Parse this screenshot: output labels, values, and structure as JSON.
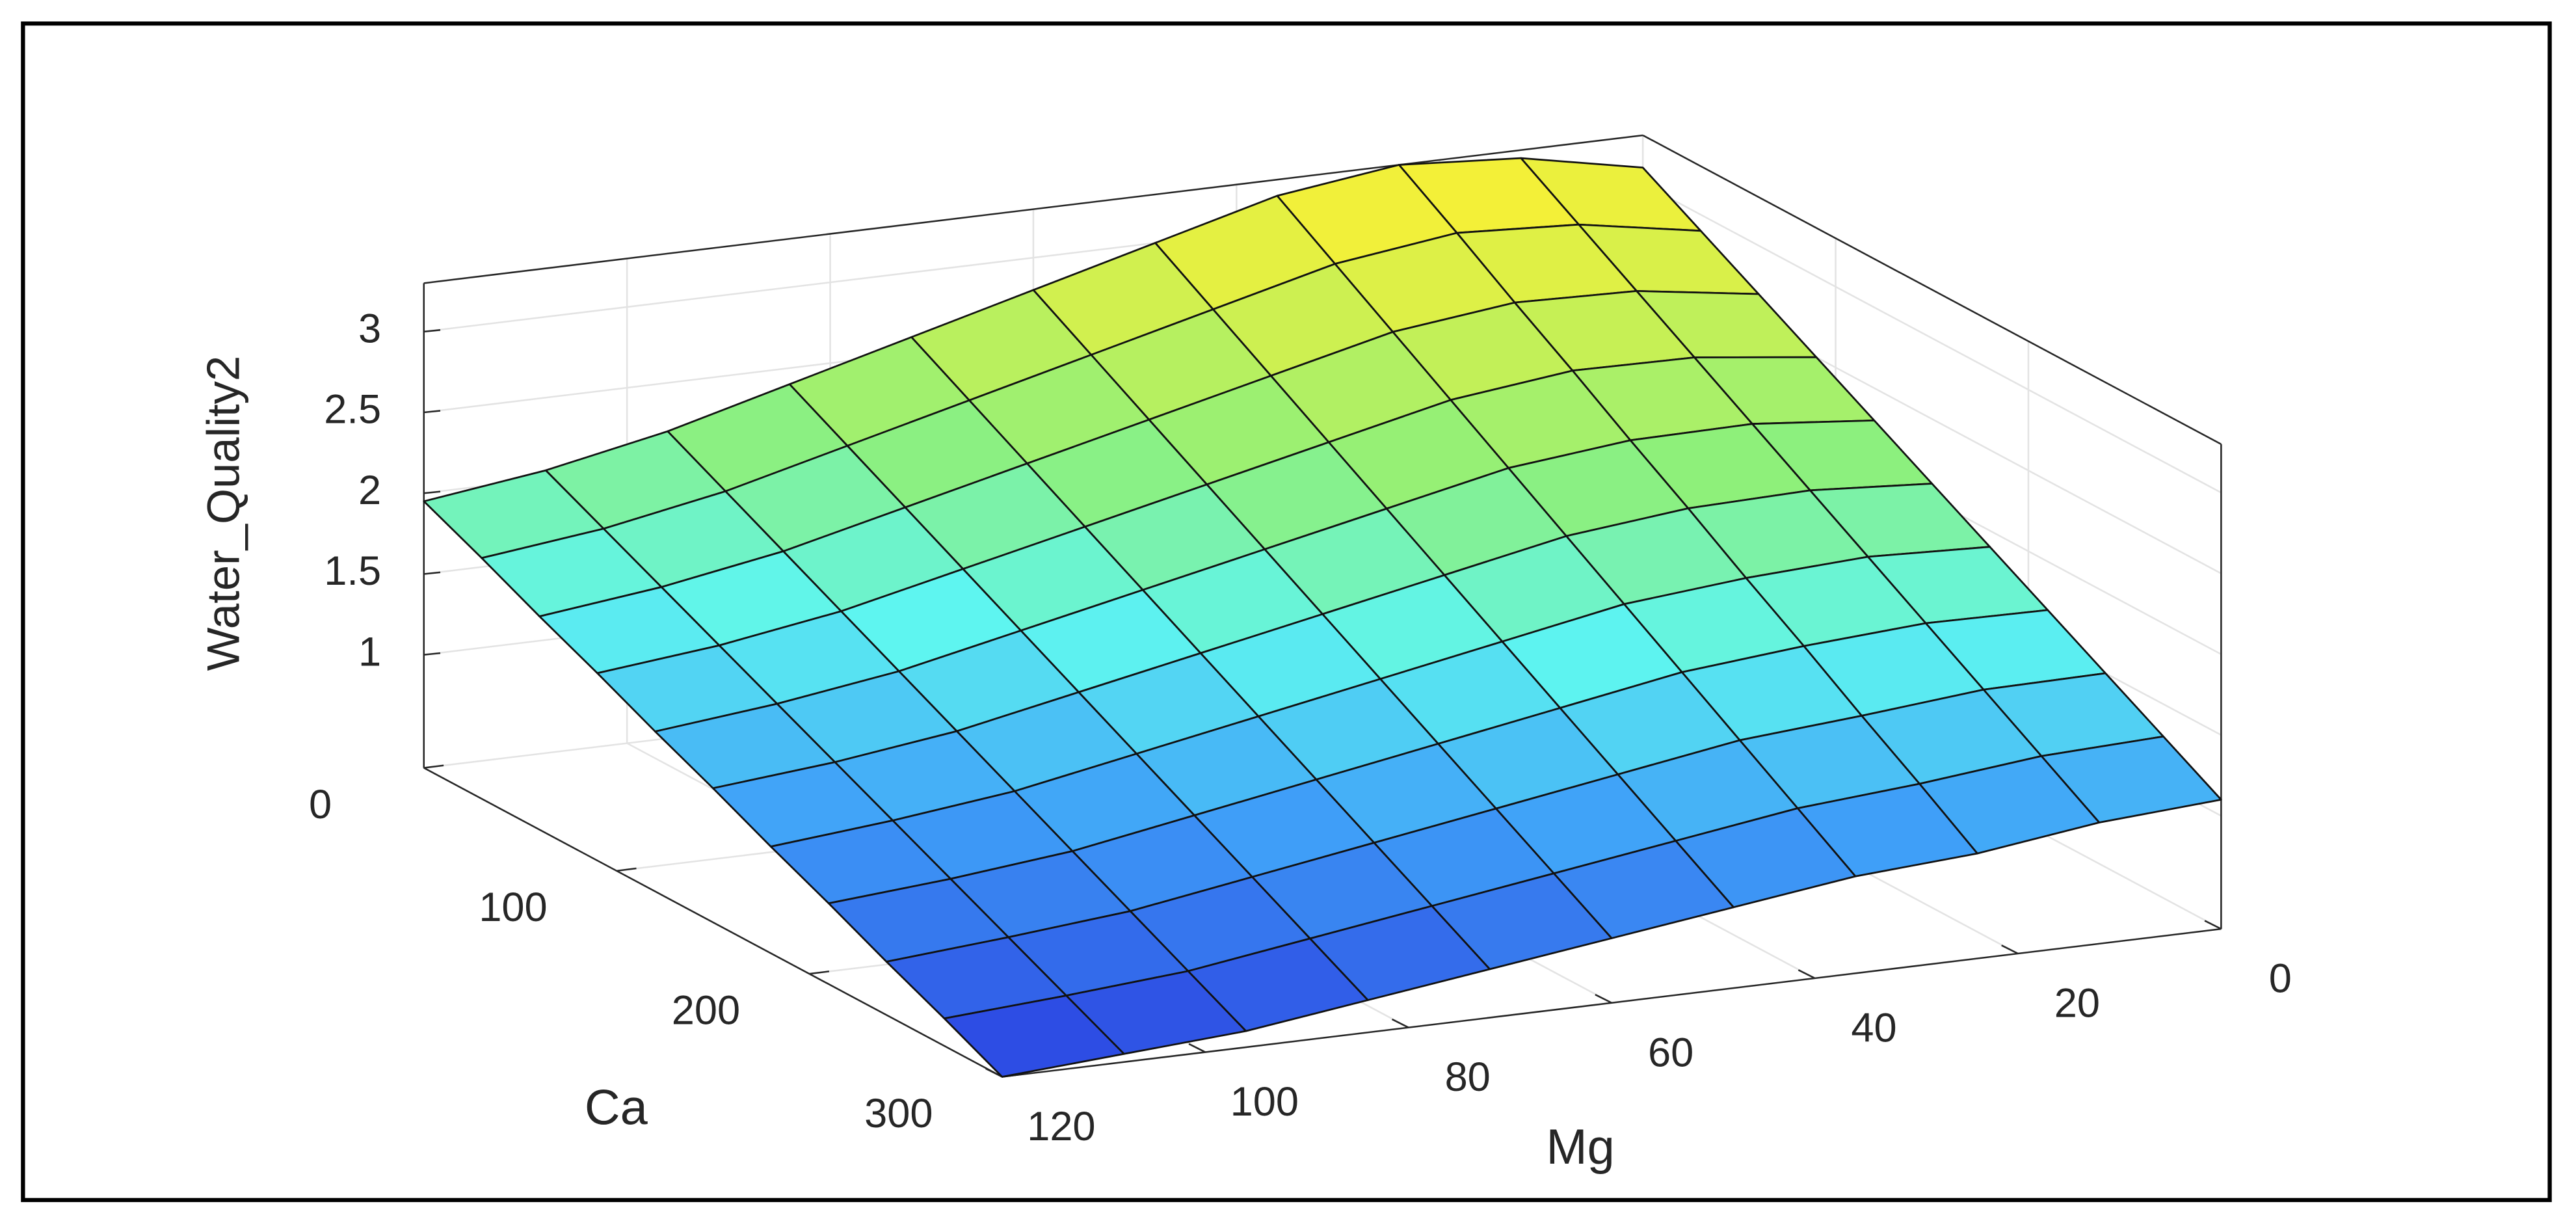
{
  "chart_data": {
    "type": "surface",
    "colormap": "parula",
    "x_label": "Mg",
    "y_label": "Ca",
    "z_label": "Water_Quality2",
    "x": [
      0,
      12,
      24,
      36,
      48,
      60,
      72,
      84,
      96,
      108,
      120
    ],
    "y": [
      0,
      30,
      60,
      90,
      120,
      150,
      180,
      210,
      240,
      270,
      300
    ],
    "z": [
      [
        3.1,
        3.25,
        3.3,
        3.2,
        3.0,
        2.8,
        2.6,
        2.4,
        2.2,
        2.05,
        1.95
      ],
      [
        2.9,
        3.03,
        3.07,
        2.97,
        2.78,
        2.59,
        2.4,
        2.21,
        2.02,
        1.88,
        1.79
      ],
      [
        2.7,
        2.81,
        2.83,
        2.74,
        2.56,
        2.38,
        2.2,
        2.02,
        1.84,
        1.71,
        1.62
      ],
      [
        2.5,
        2.59,
        2.6,
        2.51,
        2.34,
        2.17,
        2.0,
        1.83,
        1.66,
        1.54,
        1.46
      ],
      [
        2.3,
        2.37,
        2.36,
        2.28,
        2.12,
        1.96,
        1.8,
        1.64,
        1.48,
        1.37,
        1.29
      ],
      [
        2.1,
        2.15,
        2.13,
        2.05,
        1.9,
        1.75,
        1.6,
        1.45,
        1.3,
        1.2,
        1.13
      ],
      [
        1.9,
        1.93,
        1.89,
        1.82,
        1.68,
        1.54,
        1.4,
        1.26,
        1.12,
        1.03,
        0.96
      ],
      [
        1.7,
        1.71,
        1.66,
        1.59,
        1.46,
        1.33,
        1.2,
        1.07,
        0.94,
        0.86,
        0.8
      ],
      [
        1.5,
        1.49,
        1.42,
        1.36,
        1.24,
        1.12,
        1.0,
        0.88,
        0.76,
        0.69,
        0.63
      ],
      [
        1.3,
        1.27,
        1.19,
        1.13,
        1.02,
        0.91,
        0.8,
        0.69,
        0.58,
        0.52,
        0.47
      ],
      [
        1.1,
        1.05,
        0.95,
        0.9,
        0.8,
        0.7,
        0.6,
        0.5,
        0.4,
        0.35,
        0.3
      ]
    ],
    "xlim": [
      0,
      120
    ],
    "ylim": [
      0,
      300
    ],
    "zlim": [
      0.3,
      3.3
    ],
    "xticks": [
      0,
      20,
      40,
      60,
      80,
      100,
      120
    ],
    "yticks": [
      0,
      100,
      200,
      300
    ],
    "zticks": [
      1,
      1.5,
      2,
      2.5,
      3
    ],
    "grid": true
  }
}
